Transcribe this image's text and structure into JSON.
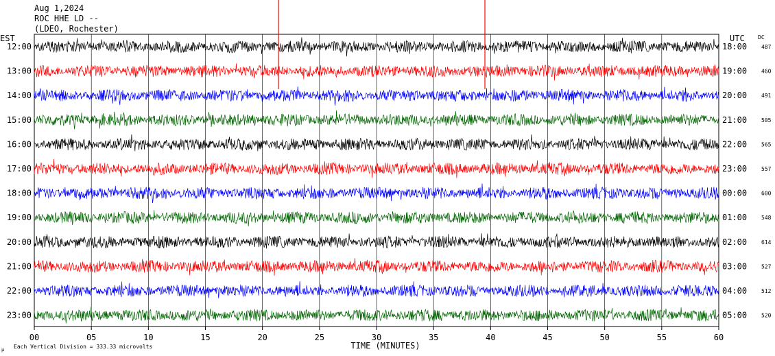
{
  "header": {
    "date": "Aug 1,2024",
    "station": "ROC HHE LD --",
    "network": "(LDEO, Rochester)"
  },
  "labels": {
    "left_timezone": "EST",
    "right_timezone": "UTC",
    "dc_header": "DC",
    "x_axis_title": "TIME (MINUTES)",
    "scale_note": "Each Vertical Division =  333.33 microvolts",
    "scale_mark": "μ"
  },
  "colors": {
    "trace_cycle": [
      "#000000",
      "#ff0000",
      "#0000ff",
      "#006400"
    ],
    "marker": "#ff0000",
    "grid": "#000000"
  },
  "chart_data": {
    "type": "line",
    "subtype": "helicorder",
    "xlim": [
      0,
      60
    ],
    "x_ticks": [
      "00",
      "05",
      "10",
      "15",
      "20",
      "25",
      "30",
      "35",
      "40",
      "45",
      "50",
      "55",
      "60"
    ],
    "rows": [
      {
        "est": "12:00",
        "utc": "18:00",
        "dc": "487"
      },
      {
        "est": "13:00",
        "utc": "19:00",
        "dc": "460"
      },
      {
        "est": "14:00",
        "utc": "20:00",
        "dc": "491"
      },
      {
        "est": "15:00",
        "utc": "21:00",
        "dc": "505"
      },
      {
        "est": "16:00",
        "utc": "22:00",
        "dc": "565"
      },
      {
        "est": "17:00",
        "utc": "23:00",
        "dc": "557"
      },
      {
        "est": "18:00",
        "utc": "00:00",
        "dc": "600"
      },
      {
        "est": "19:00",
        "utc": "01:00",
        "dc": "548"
      },
      {
        "est": "20:00",
        "utc": "02:00",
        "dc": "614"
      },
      {
        "est": "21:00",
        "utc": "03:00",
        "dc": "527"
      },
      {
        "est": "22:00",
        "utc": "04:00",
        "dc": "512"
      },
      {
        "est": "23:00",
        "utc": "05:00",
        "dc": "520"
      }
    ],
    "markers_minutes": [
      21.4,
      39.5
    ]
  }
}
